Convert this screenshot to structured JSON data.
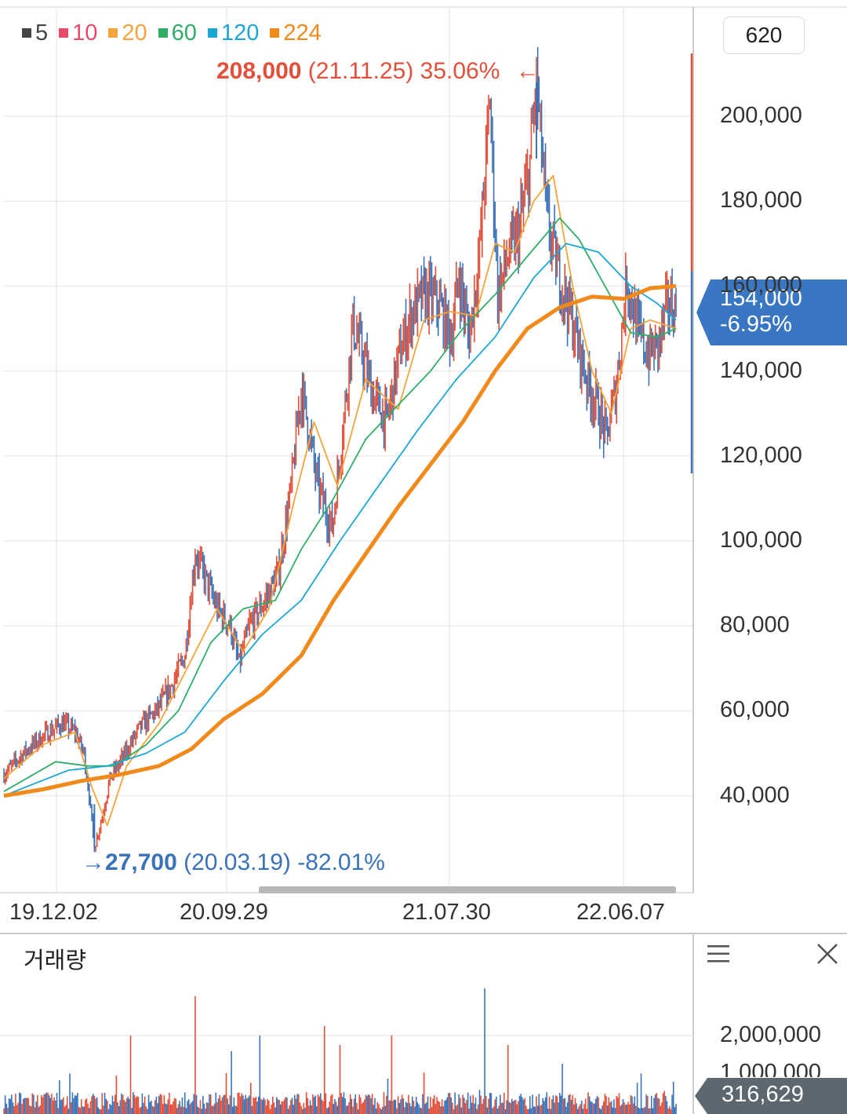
{
  "legend": [
    {
      "label": "5",
      "color": "#444444"
    },
    {
      "label": "10",
      "color": "#ea4a6a"
    },
    {
      "label": "20",
      "color": "#f5a43b"
    },
    {
      "label": "60",
      "color": "#2fae6a"
    },
    {
      "label": "120",
      "color": "#1ba7d6"
    },
    {
      "label": "224",
      "color": "#f08a1c"
    }
  ],
  "period": "620",
  "high_annotation": {
    "arrow": "←",
    "price": "208,000",
    "date": "(21.11.25)",
    "pct": "35.06%"
  },
  "low_annotation": {
    "arrow": "→",
    "price": "27,700",
    "date": "(20.03.19)",
    "pct": "-82.01%"
  },
  "current": {
    "price": "154,000",
    "change": "-6.95%"
  },
  "volume": {
    "title": "거래량",
    "current": "316,629",
    "axis": [
      "2,000,000",
      "1,000,000"
    ]
  },
  "colors": {
    "up": "#e2503a",
    "down": "#3b73b9",
    "grid": "#ececec"
  },
  "chart_data": {
    "type": "line",
    "title": "",
    "x_tick_labels": [
      "19.12.02",
      "20.09.29",
      "21.07.30",
      "22.06.07"
    ],
    "y_tick_labels": [
      "200,000",
      "180,000",
      "160,000",
      "140,000",
      "120,000",
      "100,000",
      "80,000",
      "60,000",
      "40,000"
    ],
    "ylim": [
      20000,
      220000
    ],
    "price_path": [
      [
        0,
        45000
      ],
      [
        15,
        50000
      ],
      [
        30,
        54000
      ],
      [
        45,
        57000
      ],
      [
        55,
        55000
      ],
      [
        62,
        50000
      ],
      [
        66,
        40000
      ],
      [
        70,
        27700
      ],
      [
        76,
        35000
      ],
      [
        82,
        44000
      ],
      [
        92,
        49000
      ],
      [
        105,
        56000
      ],
      [
        118,
        60000
      ],
      [
        130,
        66000
      ],
      [
        140,
        73000
      ],
      [
        148,
        97000
      ],
      [
        156,
        91000
      ],
      [
        165,
        84000
      ],
      [
        175,
        80000
      ],
      [
        182,
        71000
      ],
      [
        190,
        80000
      ],
      [
        200,
        85000
      ],
      [
        212,
        92000
      ],
      [
        222,
        112000
      ],
      [
        230,
        136000
      ],
      [
        236,
        126000
      ],
      [
        242,
        114000
      ],
      [
        248,
        108000
      ],
      [
        254,
        103000
      ],
      [
        262,
        126000
      ],
      [
        270,
        151000
      ],
      [
        278,
        143000
      ],
      [
        286,
        134000
      ],
      [
        296,
        128000
      ],
      [
        306,
        144000
      ],
      [
        316,
        154000
      ],
      [
        326,
        158000
      ],
      [
        336,
        156000
      ],
      [
        346,
        148000
      ],
      [
        352,
        162000
      ],
      [
        360,
        148000
      ],
      [
        368,
        168000
      ],
      [
        376,
        204000
      ],
      [
        382,
        158000
      ],
      [
        390,
        167000
      ],
      [
        398,
        172000
      ],
      [
        406,
        186000
      ],
      [
        412,
        208000
      ],
      [
        420,
        176000
      ],
      [
        428,
        164000
      ],
      [
        436,
        156000
      ],
      [
        444,
        146000
      ],
      [
        452,
        137000
      ],
      [
        460,
        131000
      ],
      [
        466,
        124000
      ],
      [
        474,
        137000
      ],
      [
        482,
        162000
      ],
      [
        490,
        150000
      ],
      [
        498,
        144000
      ],
      [
        506,
        146000
      ],
      [
        514,
        156000
      ],
      [
        520,
        154000
      ]
    ],
    "series": [
      {
        "name": "20",
        "values": [
          [
            0,
            44000
          ],
          [
            30,
            52000
          ],
          [
            55,
            55000
          ],
          [
            68,
            42000
          ],
          [
            80,
            33000
          ],
          [
            95,
            47000
          ],
          [
            120,
            57000
          ],
          [
            145,
            72000
          ],
          [
            165,
            84000
          ],
          [
            185,
            74000
          ],
          [
            205,
            84000
          ],
          [
            225,
            110000
          ],
          [
            240,
            128000
          ],
          [
            258,
            113000
          ],
          [
            280,
            138000
          ],
          [
            305,
            131000
          ],
          [
            325,
            152000
          ],
          [
            345,
            154000
          ],
          [
            365,
            153000
          ],
          [
            380,
            170000
          ],
          [
            395,
            168000
          ],
          [
            410,
            180000
          ],
          [
            425,
            186000
          ],
          [
            440,
            160000
          ],
          [
            455,
            140000
          ],
          [
            470,
            130000
          ],
          [
            485,
            150000
          ],
          [
            500,
            152000
          ],
          [
            520,
            150000
          ]
        ]
      },
      {
        "name": "60",
        "values": [
          [
            0,
            41000
          ],
          [
            40,
            48000
          ],
          [
            65,
            47000
          ],
          [
            85,
            47000
          ],
          [
            110,
            52000
          ],
          [
            135,
            60000
          ],
          [
            160,
            76000
          ],
          [
            185,
            84000
          ],
          [
            210,
            86000
          ],
          [
            230,
            98000
          ],
          [
            255,
            110000
          ],
          [
            280,
            124000
          ],
          [
            305,
            132000
          ],
          [
            330,
            140000
          ],
          [
            355,
            150000
          ],
          [
            380,
            158000
          ],
          [
            405,
            167000
          ],
          [
            430,
            176000
          ],
          [
            445,
            171000
          ],
          [
            465,
            160000
          ],
          [
            485,
            149000
          ],
          [
            505,
            148000
          ],
          [
            520,
            150000
          ]
        ]
      },
      {
        "name": "120",
        "values": [
          [
            0,
            40000
          ],
          [
            50,
            46000
          ],
          [
            80,
            47000
          ],
          [
            110,
            50000
          ],
          [
            140,
            55000
          ],
          [
            170,
            67000
          ],
          [
            200,
            78000
          ],
          [
            230,
            86000
          ],
          [
            260,
            100000
          ],
          [
            290,
            113000
          ],
          [
            320,
            126000
          ],
          [
            350,
            138000
          ],
          [
            380,
            148000
          ],
          [
            410,
            162000
          ],
          [
            435,
            170000
          ],
          [
            460,
            168000
          ],
          [
            485,
            160000
          ],
          [
            505,
            156000
          ],
          [
            520,
            152000
          ]
        ]
      },
      {
        "name": "224",
        "values": [
          [
            0,
            40000
          ],
          [
            30,
            41500
          ],
          [
            60,
            43500
          ],
          [
            90,
            45000
          ],
          [
            120,
            47000
          ],
          [
            145,
            51000
          ],
          [
            170,
            58000
          ],
          [
            200,
            64000
          ],
          [
            230,
            73000
          ],
          [
            255,
            86000
          ],
          [
            280,
            97000
          ],
          [
            305,
            108000
          ],
          [
            330,
            118000
          ],
          [
            355,
            128000
          ],
          [
            380,
            140000
          ],
          [
            405,
            150000
          ],
          [
            430,
            155000
          ],
          [
            455,
            157500
          ],
          [
            480,
            157000
          ],
          [
            500,
            159500
          ],
          [
            520,
            160000
          ]
        ]
      }
    ]
  }
}
